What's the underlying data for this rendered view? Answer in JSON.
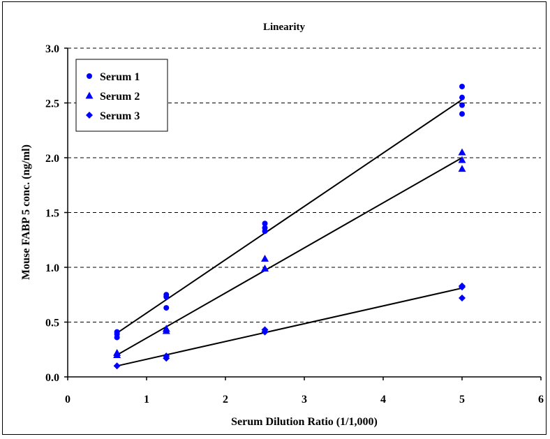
{
  "chart_data": {
    "type": "scatter",
    "title": "Linearity",
    "xlabel": "Serum Dilution Ratio (1/1,000)",
    "ylabel": "Mouse FABP 5 conc. (ng/ml)",
    "xlim": [
      0,
      6
    ],
    "ylim": [
      0,
      3
    ],
    "x_ticks": [
      "0",
      "1",
      "2",
      "3",
      "4",
      "5",
      "6"
    ],
    "y_ticks": [
      "0.0",
      "0.5",
      "1.0",
      "1.5",
      "2.0",
      "2.5",
      "3.0"
    ],
    "grid": "horizontal dashed",
    "legend_position": "top-left",
    "series": [
      {
        "name": "Serum 1",
        "marker": "circle",
        "color": "#0000ff",
        "points": [
          [
            0.625,
            0.41
          ],
          [
            0.625,
            0.39
          ],
          [
            0.625,
            0.36
          ],
          [
            1.25,
            0.75
          ],
          [
            1.25,
            0.73
          ],
          [
            1.25,
            0.63
          ],
          [
            2.5,
            1.4
          ],
          [
            2.5,
            1.36
          ],
          [
            2.5,
            1.33
          ],
          [
            5,
            2.65
          ],
          [
            5,
            2.55
          ],
          [
            5,
            2.48
          ],
          [
            5,
            2.4
          ]
        ],
        "trend": [
          [
            0.625,
            0.4
          ],
          [
            5,
            2.53
          ]
        ]
      },
      {
        "name": "Serum 2",
        "marker": "triangle",
        "color": "#0000ff",
        "points": [
          [
            0.625,
            0.22
          ],
          [
            0.625,
            0.2
          ],
          [
            1.25,
            0.44
          ],
          [
            1.25,
            0.42
          ],
          [
            2.5,
            1.08
          ],
          [
            2.5,
            0.99
          ],
          [
            5,
            2.05
          ],
          [
            5,
            1.98
          ],
          [
            5,
            1.9
          ]
        ],
        "trend": [
          [
            0.625,
            0.2
          ],
          [
            5,
            2.0
          ]
        ]
      },
      {
        "name": "Serum 3",
        "marker": "diamond",
        "color": "#0000ff",
        "points": [
          [
            0.625,
            0.1
          ],
          [
            1.25,
            0.19
          ],
          [
            1.25,
            0.17
          ],
          [
            2.5,
            0.43
          ],
          [
            2.5,
            0.41
          ],
          [
            5,
            0.83
          ],
          [
            5,
            0.82
          ],
          [
            5,
            0.72
          ]
        ],
        "trend": [
          [
            0.625,
            0.1
          ],
          [
            5,
            0.81
          ]
        ]
      }
    ]
  }
}
